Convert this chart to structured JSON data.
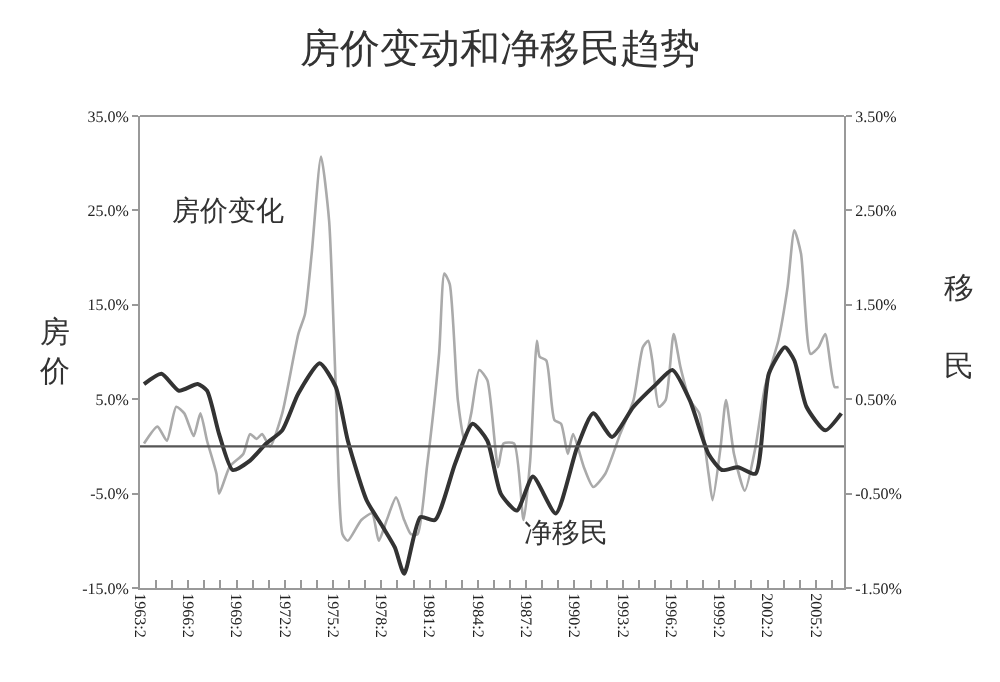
{
  "chart_data": {
    "type": "line",
    "title": "房价变动和净移民趋势",
    "ylabel": "房价",
    "y2label": "移民",
    "legend": false,
    "xlim": [
      "1963-04",
      "2007-01"
    ],
    "xticks": [
      {
        "value": "1963-04",
        "label": "1963:2"
      },
      {
        "value": "1964-04",
        "label": null
      },
      {
        "value": "1965-04",
        "label": null
      },
      {
        "value": "1966-04",
        "label": "1966:2"
      },
      {
        "value": "1967-04",
        "label": null
      },
      {
        "value": "1968-04",
        "label": null
      },
      {
        "value": "1969-04",
        "label": "1969:2"
      },
      {
        "value": "1970-04",
        "label": null
      },
      {
        "value": "1971-04",
        "label": null
      },
      {
        "value": "1972-04",
        "label": "1972:2"
      },
      {
        "value": "1973-04",
        "label": null
      },
      {
        "value": "1974-04",
        "label": null
      },
      {
        "value": "1975-04",
        "label": "1975:2"
      },
      {
        "value": "1976-04",
        "label": null
      },
      {
        "value": "1977-04",
        "label": null
      },
      {
        "value": "1978-04",
        "label": "1978:2"
      },
      {
        "value": "1979-04",
        "label": null
      },
      {
        "value": "1980-04",
        "label": null
      },
      {
        "value": "1981-04",
        "label": "1981:2"
      },
      {
        "value": "1982-04",
        "label": null
      },
      {
        "value": "1983-04",
        "label": null
      },
      {
        "value": "1984-04",
        "label": "1984:2"
      },
      {
        "value": "1985-04",
        "label": null
      },
      {
        "value": "1986-04",
        "label": null
      },
      {
        "value": "1987-04",
        "label": "1987:2"
      },
      {
        "value": "1988-04",
        "label": null
      },
      {
        "value": "1989-04",
        "label": null
      },
      {
        "value": "1990-04",
        "label": "1990:2"
      },
      {
        "value": "1991-04",
        "label": null
      },
      {
        "value": "1992-04",
        "label": null
      },
      {
        "value": "1993-04",
        "label": "1993:2"
      },
      {
        "value": "1994-04",
        "label": null
      },
      {
        "value": "1995-04",
        "label": null
      },
      {
        "value": "1996-04",
        "label": "1996:2"
      },
      {
        "value": "1997-04",
        "label": null
      },
      {
        "value": "1998-04",
        "label": null
      },
      {
        "value": "1999-04",
        "label": "1999:2"
      },
      {
        "value": "2000-04",
        "label": null
      },
      {
        "value": "2001-04",
        "label": null
      },
      {
        "value": "2002-04",
        "label": "2002:2"
      },
      {
        "value": "2003-04",
        "label": null
      },
      {
        "value": "2004-04",
        "label": null
      },
      {
        "value": "2005-04",
        "label": "2005:2"
      },
      {
        "value": "2006-04",
        "label": null
      }
    ],
    "ylim": [
      -15,
      35
    ],
    "yticks": [
      {
        "value": -15,
        "label": "-15.0%"
      },
      {
        "value": -5,
        "label": "-5.0%"
      },
      {
        "value": 5,
        "label": "5.0%"
      },
      {
        "value": 15,
        "label": "15.0%"
      },
      {
        "value": 25,
        "label": "25.0%"
      },
      {
        "value": 35,
        "label": "35.0%"
      }
    ],
    "y2lim": [
      -1.5,
      3.5
    ],
    "y2ticks": [
      {
        "value": -1.5,
        "label": "-1.50%"
      },
      {
        "value": -0.5,
        "label": "-0.50%"
      },
      {
        "value": 0.5,
        "label": "0.50%"
      },
      {
        "value": 1.5,
        "label": "1.50%"
      },
      {
        "value": 2.5,
        "label": "2.50%"
      },
      {
        "value": 3.5,
        "label": "3.50%"
      }
    ],
    "ref_lines": [
      {
        "axis": "y",
        "value": 0,
        "color": "#555555"
      }
    ],
    "annotations": [
      "房价变化",
      "净移民"
    ],
    "series": [
      {
        "color": "#aaaaaa",
        "x": [
          "1963-07",
          "1964-05",
          "1964-12",
          "1965-07",
          "1966-01",
          "1966-08",
          "1967-01",
          "1967-06",
          "1968-01",
          "1968-03",
          "1968-11",
          "1969-09",
          "1970-02",
          "1970-07",
          "1970-11",
          "1971-05",
          "1972-02",
          "1973-02",
          "1973-07",
          "1973-12",
          "1974-07",
          "1975-01",
          "1975-06",
          "1975-11",
          "1976-03",
          "1977-01",
          "1977-09",
          "1978-02",
          "1978-08",
          "1979-03",
          "1979-09",
          "1980-02",
          "1980-07",
          "1981-02",
          "1981-11",
          "1982-03",
          "1982-07",
          "1983-01",
          "1983-06",
          "1983-11",
          "1984-05",
          "1984-11",
          "1985-07",
          "1985-11",
          "1986-07",
          "1987-02",
          "1987-07",
          "1987-12",
          "1988-02",
          "1988-07",
          "1989-01",
          "1989-06",
          "1989-11",
          "1990-03",
          "1990-11",
          "1991-06",
          "1992-03",
          "1993-02",
          "1993-12",
          "1994-07",
          "1994-11",
          "1995-02",
          "1995-07",
          "1995-12",
          "1996-06",
          "1996-11",
          "1997-06",
          "1998-01",
          "1998-08",
          "1998-11",
          "1999-05",
          "1999-09",
          "2000-03",
          "2000-11",
          "2001-07",
          "2002-02",
          "2002-12",
          "2003-07",
          "2003-12",
          "2004-05",
          "2004-12",
          "2005-06",
          "2005-11",
          "2006-06",
          "2006-09"
        ],
        "values": [
          0.3,
          2.1,
          0.6,
          4.2,
          3.5,
          1.1,
          3.5,
          0.6,
          -2.9,
          -5.0,
          -2.1,
          -0.8,
          1.3,
          0.8,
          1.3,
          0.0,
          3.5,
          11.9,
          14.0,
          20.4,
          30.7,
          23.9,
          6.3,
          -9.3,
          -10.0,
          -7.8,
          -7.1,
          -10.0,
          -7.8,
          -5.4,
          -7.8,
          -9.3,
          -9.3,
          -2.1,
          9.8,
          18.3,
          17.2,
          4.9,
          0.6,
          3.5,
          8.1,
          7.0,
          -2.2,
          0.3,
          0.3,
          -7.8,
          -1.5,
          11.2,
          9.5,
          9.1,
          2.8,
          2.4,
          -0.8,
          1.3,
          -2.2,
          -4.3,
          -2.9,
          1.3,
          4.9,
          10.5,
          11.2,
          9.1,
          4.2,
          4.9,
          11.9,
          8.4,
          4.9,
          3.5,
          -2.9,
          -5.7,
          -0.1,
          4.9,
          -0.8,
          -4.7,
          -0.1,
          6.3,
          11.2,
          16.9,
          22.9,
          20.4,
          9.8,
          10.5,
          11.9,
          6.3,
          6.3
        ]
      },
      {
        "color": "#333333",
        "axis": "y2",
        "x": [
          "1963-07",
          "1964-08",
          "1965-09",
          "1966-11",
          "1967-06",
          "1968-03",
          "1969-01",
          "1970-02",
          "1971-02",
          "1972-02",
          "1973-02",
          "1974-06",
          "1975-06",
          "1976-03",
          "1977-05",
          "1978-05",
          "1979-02",
          "1979-09",
          "1980-09",
          "1981-08",
          "1982-11",
          "1983-12",
          "1984-11",
          "1985-09",
          "1986-09",
          "1987-09",
          "1989-02",
          "1990-06",
          "1991-06",
          "1992-08",
          "1993-12",
          "1995-05",
          "1996-05",
          "1997-06",
          "1998-08",
          "1999-06",
          "2000-06",
          "2001-07",
          "2002-05",
          "2003-05",
          "2003-12",
          "2004-09",
          "2005-11",
          "2006-11"
        ],
        "values": [
          0.66,
          0.77,
          0.59,
          0.66,
          0.59,
          0.13,
          -0.25,
          -0.15,
          0.03,
          0.17,
          0.56,
          0.88,
          0.63,
          0.06,
          -0.57,
          -0.85,
          -1.07,
          -1.35,
          -0.75,
          -0.78,
          -0.18,
          0.24,
          0.06,
          -0.5,
          -0.68,
          -0.32,
          -0.71,
          -0.01,
          0.35,
          0.1,
          0.42,
          0.66,
          0.81,
          0.49,
          -0.08,
          -0.25,
          -0.22,
          -0.29,
          0.77,
          1.05,
          0.91,
          0.42,
          0.17,
          0.35
        ]
      }
    ]
  }
}
